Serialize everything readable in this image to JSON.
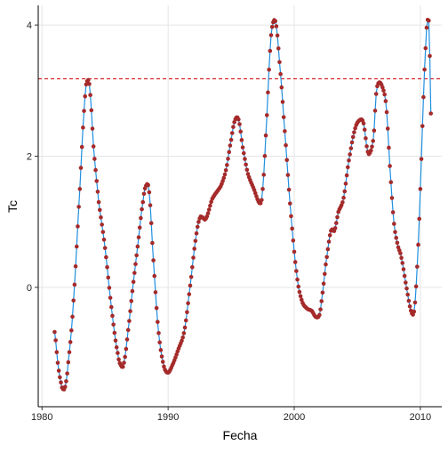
{
  "chart_data": {
    "type": "line",
    "title": "",
    "xlabel": "Fecha",
    "ylabel": "Tc",
    "xlim": [
      1979.7,
      2011.7
    ],
    "ylim": [
      -1.82,
      4.3
    ],
    "x_ticks": [
      1980,
      1990,
      2000,
      2010
    ],
    "x_tick_labels": [
      "1980",
      "1990",
      "2000",
      "2010"
    ],
    "y_ticks": [
      0,
      2,
      4
    ],
    "y_tick_labels": [
      "0",
      "2",
      "4"
    ],
    "grid": true,
    "reference_line": {
      "y": 3.18,
      "style": "dashed"
    },
    "colors": {
      "line": "#1f8fe0",
      "points": "#a52a2a",
      "reference_line": "#d62728",
      "grid": "#e5e5e5",
      "axis": "#000000"
    },
    "keyframes": {
      "x": [
        1981.0,
        1981.25,
        1981.5,
        1981.65,
        1981.85,
        1982.1,
        1982.5,
        1983.0,
        1983.4,
        1983.6,
        1983.8,
        1984.1,
        1984.5,
        1985.0,
        1985.5,
        1986.0,
        1986.3,
        1986.5,
        1986.8,
        1987.2,
        1987.6,
        1988.0,
        1988.25,
        1988.5,
        1988.8,
        1989.2,
        1989.6,
        1989.95,
        1990.3,
        1990.8,
        1991.3,
        1991.8,
        1992.2,
        1992.5,
        1992.7,
        1993.0,
        1993.5,
        1994.2,
        1994.6,
        1995.0,
        1995.3,
        1995.6,
        1995.9,
        1996.3,
        1996.8,
        1997.3,
        1997.5,
        1997.8,
        1998.1,
        1998.3,
        1998.55,
        1998.8,
        1999.2,
        1999.7,
        2000.2,
        2000.6,
        2001.0,
        2001.4,
        2001.7,
        2002.0,
        2002.2,
        2002.5,
        2002.9,
        2003.2,
        2003.5,
        2003.9,
        2004.3,
        2004.8,
        2005.2,
        2005.5,
        2005.8,
        2006.0,
        2006.3,
        2006.5,
        2006.7,
        2007.0,
        2007.3,
        2007.6,
        2007.9,
        2008.2,
        2008.5,
        2008.9,
        2009.3,
        2009.55,
        2009.8,
        2010.0,
        2010.25,
        2010.45,
        2010.55,
        2010.7,
        2010.85
      ],
      "y": [
        -0.68,
        -1.15,
        -1.45,
        -1.55,
        -1.5,
        -1.1,
        -0.2,
        1.5,
        2.85,
        3.15,
        3.0,
        2.1,
        1.3,
        0.6,
        -0.3,
        -1.0,
        -1.2,
        -1.15,
        -0.7,
        0.0,
        0.65,
        1.3,
        1.55,
        1.45,
        0.5,
        -0.6,
        -1.15,
        -1.3,
        -1.2,
        -0.95,
        -0.65,
        0.1,
        0.75,
        1.05,
        1.07,
        1.05,
        1.35,
        1.55,
        1.8,
        2.25,
        2.55,
        2.55,
        2.15,
        1.75,
        1.5,
        1.28,
        1.5,
        2.5,
        3.65,
        4.02,
        4.02,
        3.5,
        2.5,
        1.2,
        0.2,
        -0.2,
        -0.32,
        -0.36,
        -0.45,
        -0.42,
        -0.15,
        0.35,
        0.85,
        0.87,
        1.15,
        1.35,
        1.9,
        2.4,
        2.55,
        2.5,
        2.1,
        2.05,
        2.3,
        2.95,
        3.12,
        3.05,
        2.75,
        1.8,
        1.0,
        0.65,
        0.45,
        0.0,
        -0.38,
        -0.3,
        0.5,
        1.5,
        2.9,
        3.75,
        4.05,
        3.95,
        2.55
      ],
      "sample_step_months": 1
    }
  }
}
